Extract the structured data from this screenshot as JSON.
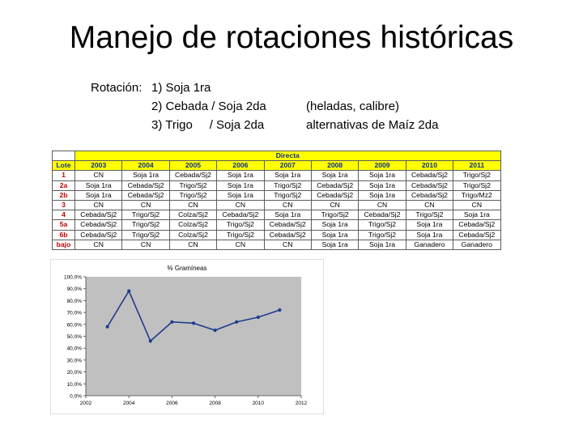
{
  "title": "Manejo de rotaciones históricas",
  "rotation": {
    "label": "Rotación:",
    "items": [
      "1) Soja 1ra",
      "2) Cebada / Soja 2da",
      "3) Trigo     / Soja 2da"
    ],
    "notes": [
      "(heladas, calibre)",
      "alternativas de Maíz 2da"
    ]
  },
  "table": {
    "group_header": "Directa",
    "lote_header": "Lote",
    "years": [
      "2003",
      "2004",
      "2005",
      "2006",
      "2007",
      "2008",
      "2009",
      "2010",
      "2011"
    ],
    "rows": [
      {
        "lote": "1",
        "cells": [
          "CN",
          "Soja 1ra",
          "Cebada/Sj2",
          "Soja 1ra",
          "Soja 1ra",
          "Soja 1ra",
          "Soja 1ra",
          "Cebada/Sj2",
          "Trigo/Sj2"
        ]
      },
      {
        "lote": "2a",
        "cells": [
          "Soja 1ra",
          "Cebada/Sj2",
          "Trigo/Sj2",
          "Soja 1ra",
          "Trigo/Sj2",
          "Cebada/Sj2",
          "Soja 1ra",
          "Cebada/Sj2",
          "Trigo/Sj2"
        ]
      },
      {
        "lote": "2b",
        "cells": [
          "Soja 1ra",
          "Cebada/Sj2",
          "Trigo/Sj2",
          "Soja 1ra",
          "Trigo/Sj2",
          "Cebada/Sj2",
          "Soja 1ra",
          "Cebada/Sj2",
          "Trigo/Mz2"
        ]
      },
      {
        "lote": "3",
        "cells": [
          "CN",
          "CN",
          "CN",
          "CN",
          "CN",
          "CN",
          "CN",
          "CN",
          "CN"
        ]
      },
      {
        "lote": "4",
        "cells": [
          "Cebada/Sj2",
          "Trigo/Sj2",
          "Colza/Sj2",
          "Cebada/Sj2",
          "Soja 1ra",
          "Trigo/Sj2",
          "Cebada/Sj2",
          "Trigo/Sj2",
          "Soja 1ra"
        ]
      },
      {
        "lote": "5a",
        "cells": [
          "Cebada/Sj2",
          "Trigo/Sj2",
          "Colza/Sj2",
          "Trigo/Sj2",
          "Cebada/Sj2",
          "Soja 1ra",
          "Trigo/Sj2",
          "Soja 1ra",
          "Cebada/Sj2"
        ]
      },
      {
        "lote": "6b",
        "cells": [
          "Cebada/Sj2",
          "Trigo/Sj2",
          "Colza/Sj2",
          "Trigo/Sj2",
          "Cebada/Sj2",
          "Soja 1ra",
          "Trigo/Sj2",
          "Soja 1ra",
          "Cebada/Sj2"
        ]
      },
      {
        "lote": "bajo",
        "cells": [
          "CN",
          "CN",
          "CN",
          "CN",
          "CN",
          "Soja 1ra",
          "Soja 1ra",
          "Ganadero",
          "Ganadero"
        ]
      }
    ]
  },
  "colors": {
    "header_fill": "#ffff00",
    "lote_text": "#c00000",
    "header_text": "#0f2f8f",
    "plot_bg": "#c0c0c0",
    "line": "#1f3c8c"
  },
  "chart_data": {
    "type": "line",
    "title": "% Gramíneas",
    "xlabel": "",
    "ylabel": "",
    "x": [
      2003,
      2004,
      2005,
      2006,
      2007,
      2008,
      2009,
      2010,
      2011
    ],
    "series": [
      {
        "values": [
          58,
          88,
          46,
          62,
          61,
          55,
          62,
          66,
          72
        ]
      }
    ],
    "xlim": [
      2002,
      2012
    ],
    "ylim": [
      0,
      100
    ],
    "xticks": [
      "2002",
      "2004",
      "2006",
      "2008",
      "2010",
      "2012"
    ],
    "yticks": [
      "0,0%",
      "10,0%",
      "20,0%",
      "30,0%",
      "40,0%",
      "50,0%",
      "60,0%",
      "70,0%",
      "80,0%",
      "90,0%",
      "100,0%"
    ],
    "grid": false,
    "legend": "none"
  }
}
